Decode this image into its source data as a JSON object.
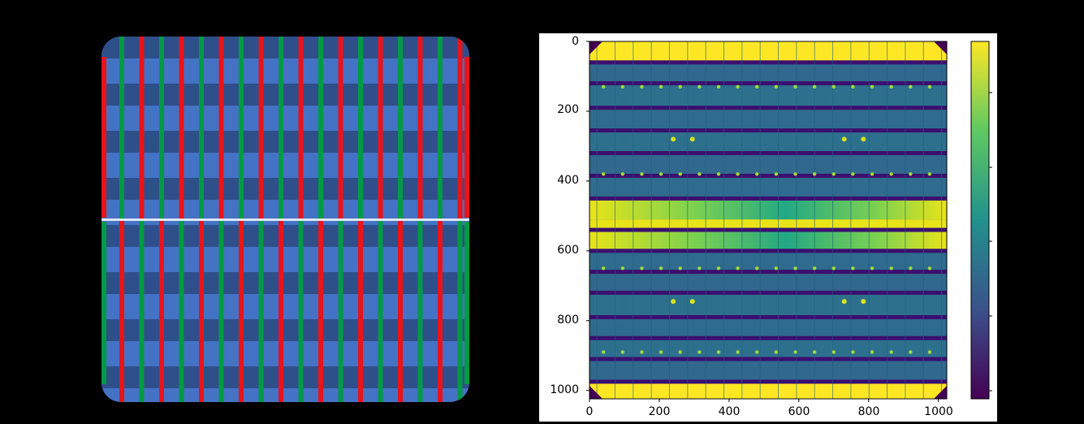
{
  "layout_diagram": {
    "background": "#000000",
    "base_blue": "#4472c4",
    "dark_band": "#2f4f8a",
    "top_half_bus_colors": [
      "#009a44",
      "#e8141a"
    ],
    "bottom_half_bus_colors": [
      "#e8141a",
      "#009a44"
    ],
    "edge_color_top": "#e8141a",
    "edge_color_bottom": "#009a44"
  },
  "image_panel": {
    "colormap": "viridis",
    "colorbar_colors": [
      "#440154",
      "#3b528b",
      "#21918c",
      "#5ec962",
      "#fde725"
    ],
    "y_ticks": [
      "0",
      "200",
      "400",
      "600",
      "800",
      "1000"
    ],
    "x_ticks": [
      "0",
      "200",
      "400",
      "600",
      "800",
      "1000"
    ],
    "x_range": [
      0,
      1024
    ],
    "y_range": [
      1024,
      0
    ]
  }
}
